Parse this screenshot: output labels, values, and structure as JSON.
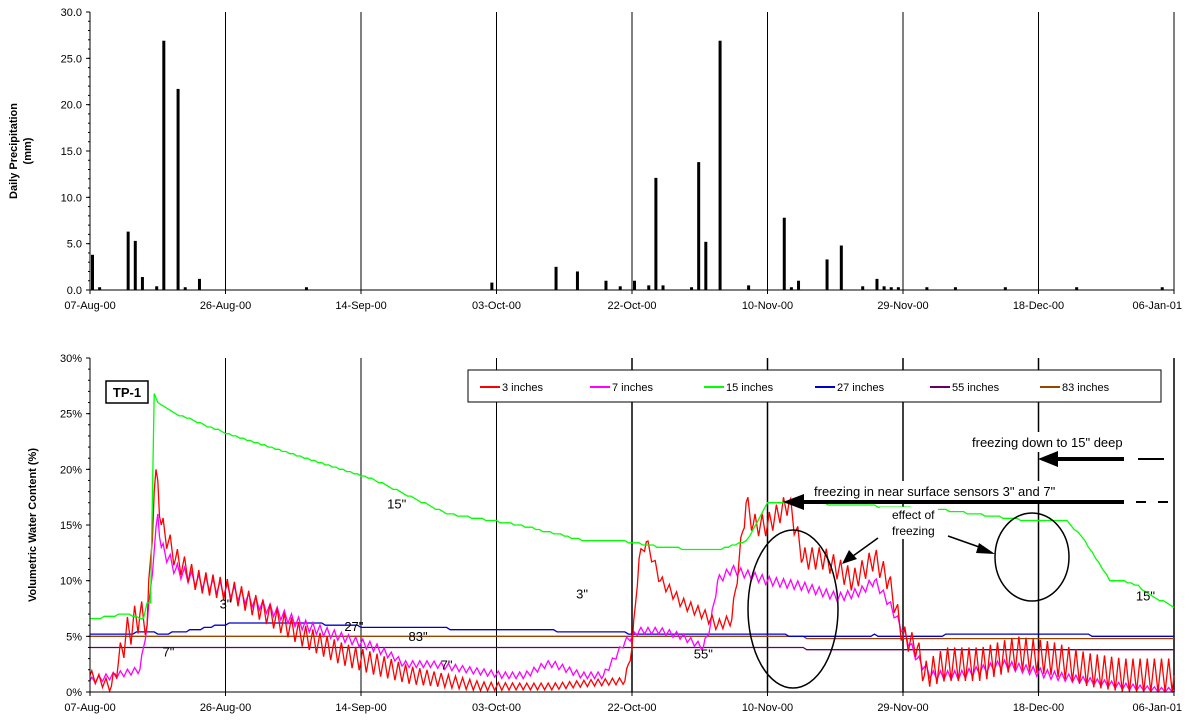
{
  "chart_data": [
    {
      "type": "bar",
      "title": "",
      "xlabel": "",
      "ylabel": "Daily Precipitation (mm)",
      "ylabel_lines": [
        "Daily Precipitation",
        "(mm)"
      ],
      "ylim": [
        0,
        30
      ],
      "y_ticks": [
        "0.0",
        "5.0",
        "10.0",
        "15.0",
        "20.0",
        "25.0",
        "30.0"
      ],
      "x_tick_labels": [
        "07-Aug-00",
        "26-Aug-00",
        "14-Sep-00",
        "03-Oct-00",
        "22-Oct-00",
        "10-Nov-00",
        "29-Nov-00",
        "18-Dec-00",
        "06-Jan-01"
      ],
      "grid": "vertical",
      "bar_color": "#000000",
      "days": [
        0,
        1,
        5,
        6,
        7,
        9,
        10,
        12,
        13,
        15,
        30,
        56,
        65,
        68,
        72,
        74,
        76,
        78,
        79,
        80,
        84,
        85,
        86,
        88,
        92,
        97,
        98,
        99,
        103,
        105,
        108,
        110,
        111,
        112,
        113,
        117,
        121,
        128,
        138,
        156,
        150
      ],
      "values": [
        3.8,
        0.3,
        6.3,
        5.3,
        1.4,
        0.4,
        26.9,
        21.7,
        0.3,
        1.2,
        0.3,
        0.8,
        2.5,
        2.0,
        1.0,
        0.4,
        1.0,
        0.5,
        12.1,
        0.5,
        0.3,
        13.8,
        5.2,
        26.9,
        0.5,
        7.8,
        0.3,
        1.0,
        3.3,
        4.8,
        0.4,
        1.2,
        0.4,
        0.3,
        0.3,
        0.3,
        0.3,
        0.3,
        0.3,
        0.3,
        0.3
      ]
    },
    {
      "type": "line",
      "title": "",
      "xlabel": "",
      "ylabel": "Volumetric Water Content (%)",
      "ylim": [
        0,
        30
      ],
      "y_ticks": [
        "0%",
        "5%",
        "10%",
        "15%",
        "20%",
        "25%",
        "30%"
      ],
      "x_tick_labels": [
        "07-Aug-00",
        "26-Aug-00",
        "14-Sep-00",
        "03-Oct-00",
        "22-Oct-00",
        "10-Nov-00",
        "29-Nov-00",
        "18-Dec-00",
        "06-Jan-01"
      ],
      "grid": "vertical",
      "legend_position": "top-right",
      "box_label": "TP-1",
      "series": [
        {
          "name": "3 inches",
          "color": "#ff0000",
          "x": [
            0,
            3,
            5,
            7,
            8,
            9,
            9.5,
            10,
            12,
            15,
            20,
            25,
            30,
            35,
            40,
            45,
            50,
            55,
            60,
            65,
            70,
            75,
            76,
            77,
            78,
            80,
            83,
            86,
            88,
            90,
            92,
            93,
            95,
            98,
            100,
            103,
            105,
            107,
            110,
            112,
            114,
            116,
            117,
            120,
            125,
            130,
            135,
            140,
            145,
            150,
            155
          ],
          "y": [
            1.5,
            0.5,
            5,
            7,
            6,
            18,
            19,
            15,
            12,
            10,
            9,
            7,
            5,
            3.5,
            2.5,
            1.5,
            1.0,
            0.5,
            0.5,
            0.5,
            0.8,
            1.0,
            4,
            12,
            13.5,
            10,
            8,
            7,
            6,
            6.5,
            17,
            15,
            15,
            17,
            12,
            12,
            11,
            10,
            12,
            10,
            5,
            4,
            1.5,
            2.5,
            2.5,
            3.5,
            3,
            2,
            1.5,
            1.5,
            1.5
          ],
          "amp": [
            0.5,
            0.5,
            1.5,
            1.5,
            1.0,
            1.5,
            1.5,
            1.0,
            1.0,
            1.0,
            1.0,
            1.0,
            1.0,
            1.0,
            1.0,
            0.8,
            0.6,
            0.4,
            0.3,
            0.3,
            0.3,
            0.3,
            0.5,
            0.5,
            0.5,
            0.5,
            0.5,
            0.5,
            0.5,
            0.5,
            1.0,
            1.0,
            1.0,
            1.0,
            1.0,
            1.0,
            1.0,
            1.0,
            1.0,
            1.0,
            1.0,
            1.0,
            1.2,
            1.5,
            1.5,
            1.5,
            1.5,
            1.5,
            1.5,
            1.5,
            1.5
          ]
        },
        {
          "name": "7 inches",
          "color": "#ff00ff",
          "x": [
            0,
            7,
            8,
            9.5,
            10,
            12,
            15,
            20,
            25,
            30,
            35,
            40,
            43,
            44,
            48,
            53,
            58,
            61,
            64,
            65,
            69,
            72,
            75,
            77,
            80,
            83,
            86,
            87,
            88,
            90,
            95,
            100,
            105,
            108,
            110,
            112,
            116,
            118,
            122,
            128,
            135,
            140,
            145,
            150,
            155
          ],
          "y": [
            1,
            2,
            6,
            16,
            13,
            11,
            10,
            9,
            7.5,
            6,
            5,
            4,
            3,
            2.5,
            2.5,
            2,
            1.5,
            1.5,
            2.5,
            2.5,
            1.5,
            1.5,
            4.5,
            5.5,
            5.5,
            5,
            4,
            6,
            10,
            11,
            10,
            9.5,
            8.5,
            9,
            10,
            8,
            3,
            1.5,
            1.5,
            2.5,
            1.5,
            1,
            0.5,
            0.2,
            0.2
          ],
          "amp": [
            0.3,
            0.3,
            0.3,
            0.5,
            0.6,
            0.6,
            0.6,
            0.6,
            0.5,
            0.5,
            0.4,
            0.4,
            0.3,
            0.3,
            0.3,
            0.3,
            0.3,
            0.3,
            0.3,
            0.3,
            0.3,
            0.3,
            0.3,
            0.3,
            0.3,
            0.3,
            0.3,
            0.4,
            0.4,
            0.4,
            0.4,
            0.4,
            0.4,
            0.4,
            0.4,
            0.4,
            0.4,
            0.4,
            0.4,
            0.4,
            0.4,
            0.3,
            0.3,
            0.2,
            0.2
          ]
        },
        {
          "name": "15 inches",
          "color": "#00ff00",
          "x": [
            0,
            5,
            7.5,
            8,
            8.5,
            9,
            9.5,
            12,
            20,
            30,
            40,
            45,
            50,
            60,
            70,
            75,
            80,
            85,
            88,
            92,
            95,
            100,
            110,
            120,
            130,
            137,
            139,
            141,
            143,
            145,
            147,
            149,
            151,
            152,
            154,
            155
          ],
          "y": [
            6.5,
            7,
            6.5,
            8,
            8,
            26.8,
            26,
            25,
            23,
            21,
            19,
            17.5,
            16,
            15,
            13.5,
            13.5,
            13,
            12.8,
            12.8,
            13.5,
            17,
            17,
            16.7,
            16.3,
            15.5,
            15.3,
            14,
            12,
            10,
            10,
            9.5,
            8.5,
            8,
            7.5,
            7.5,
            7.5
          ],
          "amp": null
        },
        {
          "name": "27 inches",
          "color": "#0000cc",
          "x": [
            0,
            5,
            8,
            10,
            15,
            20,
            30,
            40,
            50,
            60,
            65,
            70,
            80,
            90,
            95,
            100,
            110,
            115,
            120,
            130,
            140,
            150,
            155
          ],
          "y": [
            5.2,
            5.2,
            5.4,
            5.2,
            5.6,
            6.2,
            6.2,
            5.8,
            5.7,
            5.5,
            5.5,
            5.4,
            5.2,
            5.2,
            5.2,
            5.0,
            5.1,
            5.0,
            5.1,
            5.1,
            5.1,
            5.0,
            5.0
          ],
          "amp": null
        },
        {
          "name": "55 inches",
          "color": "#660066",
          "x": [
            0,
            25,
            50,
            75,
            100,
            125,
            155
          ],
          "y": [
            4.0,
            4.0,
            4.0,
            3.9,
            3.9,
            3.8,
            3.8
          ],
          "amp": null
        },
        {
          "name": "83 inches",
          "color": "#994400",
          "x": [
            0,
            25,
            50,
            75,
            100,
            125,
            155
          ],
          "y": [
            5.0,
            5.0,
            5.0,
            4.9,
            4.9,
            4.8,
            4.8
          ],
          "amp": null
        }
      ],
      "depth_labels": [
        {
          "text": "15\"",
          "x": 43,
          "y": 16.5
        },
        {
          "text": "3\"",
          "x": 19,
          "y": 7.5
        },
        {
          "text": "7\"",
          "x": 11,
          "y": 3.2
        },
        {
          "text": "27\"",
          "x": 37,
          "y": 5.5
        },
        {
          "text": "83\"",
          "x": 46,
          "y": 4.6
        },
        {
          "text": "7\"",
          "x": 50,
          "y": 2.0
        },
        {
          "text": "3\"",
          "x": 69,
          "y": 8.4
        },
        {
          "text": "55\"",
          "x": 86,
          "y": 3.0
        },
        {
          "text": "15\"",
          "x": 148,
          "y": 8.2
        }
      ],
      "annotations": {
        "freeze15": "freezing down to 15\" deep",
        "freezeNear": "freezing in near surface sensors 3\" and 7\"",
        "effect": [
          "effect of",
          "freezing"
        ]
      }
    }
  ]
}
